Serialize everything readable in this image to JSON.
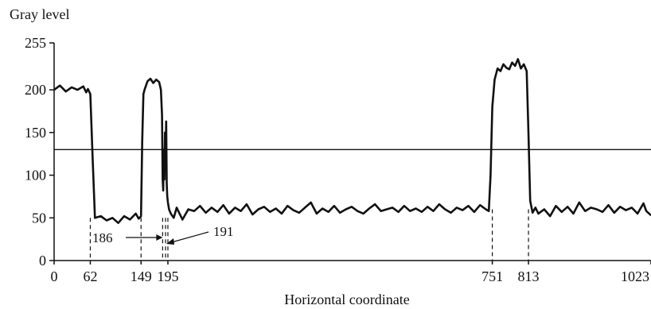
{
  "chart_data": {
    "type": "line",
    "title": "",
    "xlabel": "Horizontal coordinate",
    "ylabel": "Gray level",
    "xlim": [
      0,
      1023
    ],
    "ylim": [
      0,
      255
    ],
    "grid": false,
    "legend": "none",
    "yticks": [
      0,
      50,
      100,
      150,
      200,
      255
    ],
    "ytick_labels": [
      "0",
      "50",
      "100",
      "150",
      "200",
      "255"
    ],
    "xticks": [
      0,
      62,
      149,
      195,
      751,
      813,
      1023
    ],
    "xtick_labels": [
      "0",
      "62",
      "149",
      "195",
      "751",
      "813",
      "1023"
    ],
    "threshold": 130,
    "markers": [
      62,
      149,
      186,
      191,
      195,
      751,
      813
    ],
    "annotations": [
      {
        "text": "186",
        "x": 186
      },
      {
        "text": "191",
        "x": 191
      }
    ],
    "series": [
      {
        "x": [
          0,
          10,
          20,
          30,
          40,
          50,
          55,
          58,
          62,
          66,
          70,
          80,
          90,
          100,
          110,
          120,
          130,
          140,
          145,
          149,
          151,
          153,
          155,
          160,
          165,
          170,
          175,
          180,
          183,
          185,
          186,
          187,
          188,
          189,
          190,
          191,
          192,
          193,
          194,
          195,
          197,
          200,
          205,
          210,
          215,
          220,
          230,
          240,
          250,
          260,
          270,
          280,
          290,
          300,
          310,
          320,
          330,
          340,
          350,
          360,
          370,
          380,
          390,
          400,
          410,
          420,
          430,
          440,
          450,
          460,
          470,
          480,
          490,
          500,
          510,
          520,
          530,
          540,
          550,
          560,
          570,
          580,
          590,
          600,
          610,
          620,
          630,
          640,
          650,
          660,
          670,
          680,
          690,
          700,
          710,
          720,
          730,
          740,
          745,
          748,
          751,
          755,
          760,
          765,
          770,
          775,
          780,
          785,
          790,
          795,
          800,
          805,
          810,
          813,
          816,
          820,
          825,
          830,
          840,
          850,
          860,
          870,
          880,
          890,
          900,
          910,
          920,
          930,
          940,
          950,
          960,
          970,
          980,
          990,
          1000,
          1010,
          1015,
          1023
        ],
        "y": [
          200,
          205,
          198,
          203,
          200,
          204,
          197,
          201,
          195,
          120,
          50,
          52,
          47,
          50,
          44,
          52,
          48,
          55,
          49,
          52,
          140,
          195,
          200,
          210,
          213,
          208,
          212,
          209,
          200,
          170,
          95,
          82,
          130,
          95,
          150,
          120,
          163,
          90,
          75,
          68,
          60,
          55,
          50,
          62,
          55,
          48,
          60,
          58,
          64,
          56,
          62,
          57,
          65,
          55,
          62,
          58,
          66,
          54,
          60,
          63,
          57,
          61,
          55,
          64,
          59,
          56,
          62,
          68,
          55,
          61,
          57,
          64,
          56,
          60,
          63,
          58,
          55,
          61,
          66,
          58,
          60,
          62,
          57,
          64,
          58,
          61,
          57,
          63,
          58,
          66,
          60,
          56,
          62,
          59,
          64,
          57,
          65,
          60,
          58,
          100,
          180,
          212,
          225,
          222,
          230,
          226,
          224,
          232,
          228,
          236,
          225,
          230,
          222,
          150,
          70,
          56,
          62,
          55,
          60,
          52,
          64,
          57,
          63,
          55,
          68,
          58,
          62,
          60,
          57,
          65,
          56,
          63,
          59,
          62,
          55,
          67,
          58,
          53
        ]
      }
    ]
  }
}
